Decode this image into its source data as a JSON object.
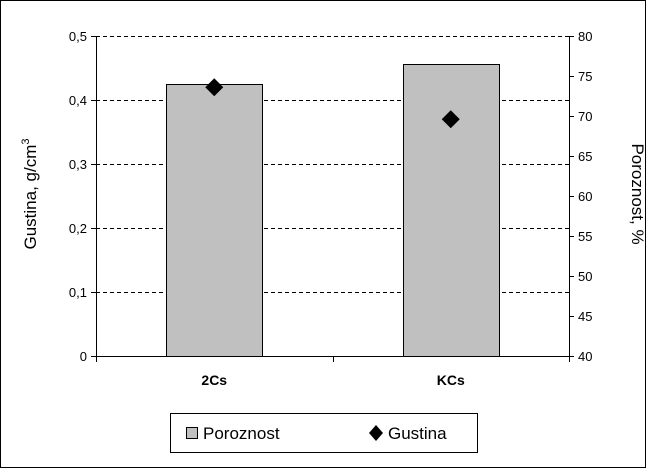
{
  "chart_data": {
    "type": "bar",
    "categories": [
      "2Cs",
      "KCs"
    ],
    "series": [
      {
        "name": "Poroznost",
        "kind": "bar",
        "axis": "right",
        "values": [
          74.0,
          76.5
        ],
        "color": "#c0c0c0"
      },
      {
        "name": "Gustina",
        "kind": "scatter",
        "axis": "left",
        "values": [
          0.42,
          0.37
        ],
        "color": "#000000",
        "marker": "diamond"
      }
    ],
    "ylabel_left": "Gustina, g/cm",
    "ylabel_left_superscript": "3",
    "ylabel_right": "Poroznost, %",
    "ylim_left": [
      0,
      0.5
    ],
    "yticks_left": [
      "0",
      "0,1",
      "0,2",
      "0,3",
      "0,4",
      "0,5"
    ],
    "ylim_right": [
      40,
      80
    ],
    "yticks_right": [
      "40",
      "45",
      "50",
      "55",
      "60",
      "65",
      "70",
      "75",
      "80"
    ],
    "grid": true,
    "legend_position": "bottom"
  }
}
